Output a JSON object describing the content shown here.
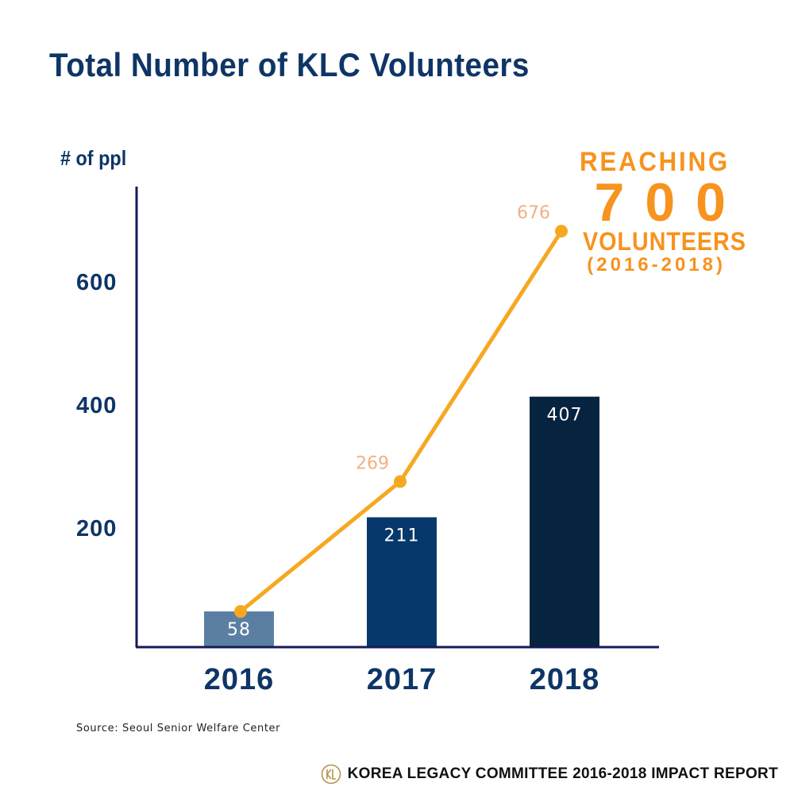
{
  "title": "Total Number of KLC Volunteers",
  "callout": {
    "line1": "REACHING",
    "line2": "700",
    "line3": "VOLUNTEERS",
    "line4": "(2016-2018)"
  },
  "source": "Source: Seoul Senior Welfare Center",
  "footer": "KOREA LEGACY COMMITTEE 2016-2018 IMPACT REPORT",
  "icons": {
    "logo": "klc-logo-icon"
  },
  "colors": {
    "title": "#0e3566",
    "axis": "#141a5c",
    "bar_2016": "#5b7fa3",
    "bar_2017": "#07386b",
    "bar_2018": "#06233f",
    "line": "#f6a821",
    "line_label": "#f0b088",
    "callout": "#f7931e"
  },
  "chart_data": {
    "type": "bar",
    "ylabel": "# of ppl",
    "categories": [
      "2016",
      "2017",
      "2018"
    ],
    "yticks": [
      200,
      400,
      600
    ],
    "ylim": [
      0,
      750
    ],
    "grid": false,
    "series": [
      {
        "type": "bar",
        "values": [
          58,
          211,
          407
        ]
      },
      {
        "type": "line",
        "values": [
          58,
          269,
          676
        ],
        "labels": [
          "",
          "269",
          "676"
        ]
      }
    ]
  }
}
